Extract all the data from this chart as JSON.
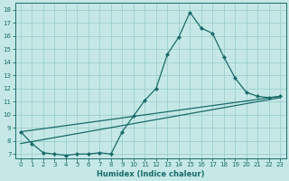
{
  "title": "",
  "xlabel": "Humidex (Indice chaleur)",
  "xlim_min": -0.5,
  "xlim_max": 23.5,
  "ylim_min": 6.7,
  "ylim_max": 18.5,
  "yticks": [
    7,
    8,
    9,
    10,
    11,
    12,
    13,
    14,
    15,
    16,
    17,
    18
  ],
  "xticks": [
    0,
    1,
    2,
    3,
    4,
    5,
    6,
    7,
    8,
    9,
    10,
    11,
    12,
    13,
    14,
    15,
    16,
    17,
    18,
    19,
    20,
    21,
    22,
    23
  ],
  "bg_color": "#c5e8e6",
  "line_color": "#1a6b6b",
  "grid_color": "#9ccfcc",
  "line1_x": [
    0,
    1,
    2,
    3,
    4,
    5,
    6,
    7,
    8,
    9,
    10,
    11,
    12,
    13,
    14,
    15,
    16,
    17,
    18,
    19,
    20,
    21,
    22,
    23
  ],
  "line1_y": [
    8.7,
    7.8,
    7.1,
    7.0,
    6.9,
    7.0,
    7.0,
    7.1,
    7.0,
    8.7,
    9.9,
    11.1,
    12.0,
    14.6,
    15.9,
    17.8,
    16.6,
    16.2,
    14.4,
    12.8,
    11.7,
    11.4,
    11.3,
    11.4
  ],
  "line2_x": [
    0,
    23
  ],
  "line2_y": [
    8.7,
    11.4
  ],
  "line3_x": [
    0,
    23
  ],
  "line3_y": [
    7.8,
    11.3
  ],
  "marker": "D",
  "markersize": 2.0,
  "linewidth": 0.9,
  "tick_labelsize": 5.0,
  "xlabel_fontsize": 6.0,
  "xlabel_fontweight": "bold"
}
